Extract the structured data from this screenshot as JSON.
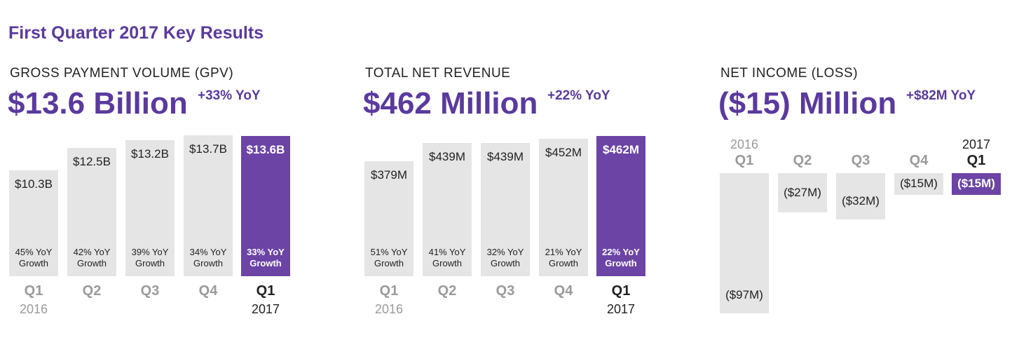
{
  "title": "First Quarter 2017 Key Results",
  "colors": {
    "accent": "#5a3a9e",
    "highlight_bar": "#6b44a6",
    "bar": "#e5e5e5"
  },
  "chart_data": [
    {
      "type": "bar",
      "title": "GROSS PAYMENT VOLUME (GPV)",
      "headline": "$13.6 Billion",
      "headline_yoy": "+33% YoY",
      "categories": [
        "Q1",
        "Q2",
        "Q3",
        "Q4",
        "Q1"
      ],
      "years": [
        "2016",
        "",
        "",
        "",
        "2017"
      ],
      "values": [
        10.3,
        12.5,
        13.2,
        13.7,
        13.6
      ],
      "unit": "billion USD",
      "labels": [
        "$10.3B",
        "$12.5B",
        "$13.2B",
        "$13.7B",
        "$13.6B"
      ],
      "growth": [
        [
          "45% YoY",
          "Growth"
        ],
        [
          "42% YoY",
          "Growth"
        ],
        [
          "39% YoY",
          "Growth"
        ],
        [
          "34% YoY",
          "Growth"
        ],
        [
          "33% YoY",
          "Growth"
        ]
      ],
      "highlight_index": 4
    },
    {
      "type": "bar",
      "title": "TOTAL NET REVENUE",
      "headline": "$462 Million",
      "headline_yoy": "+22% YoY",
      "categories": [
        "Q1",
        "Q2",
        "Q3",
        "Q4",
        "Q1"
      ],
      "years": [
        "2016",
        "",
        "",
        "",
        "2017"
      ],
      "values": [
        379,
        439,
        439,
        452,
        462
      ],
      "unit": "million USD",
      "labels": [
        "$379M",
        "$439M",
        "$439M",
        "$452M",
        "$462M"
      ],
      "growth": [
        [
          "51% YoY",
          "Growth"
        ],
        [
          "41% YoY",
          "Growth"
        ],
        [
          "32% YoY",
          "Growth"
        ],
        [
          "21% YoY",
          "Growth"
        ],
        [
          "22% YoY",
          "Growth"
        ]
      ],
      "highlight_index": 4
    },
    {
      "type": "bar",
      "title": "NET INCOME (LOSS)",
      "headline": "($15) Million",
      "headline_yoy": "+$82M YoY",
      "categories": [
        "Q1",
        "Q2",
        "Q3",
        "Q4",
        "Q1"
      ],
      "years": [
        "2016",
        "",
        "",
        "",
        "2017"
      ],
      "values": [
        -97,
        -27,
        -32,
        -15,
        -15
      ],
      "unit": "million USD",
      "labels": [
        "($97M)",
        "($27M)",
        "($32M)",
        "($15M)",
        "($15M)"
      ],
      "highlight_index": 4
    }
  ]
}
